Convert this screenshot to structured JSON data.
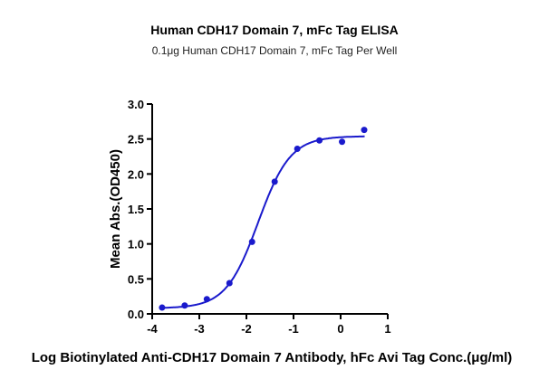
{
  "chart_data": {
    "type": "scatter",
    "title": "Human CDH17 Domain 7, mFc Tag ELISA",
    "subtitle": "0.1μg Human CDH17 Domain 7, mFc Tag Per Well",
    "xlabel": "Log Biotinylated Anti-CDH17 Domain 7 Antibody, hFc Avi  Tag Conc.(μg/ml)",
    "ylabel": "Mean Abs.(OD450)",
    "xlim": [
      -4,
      1
    ],
    "ylim": [
      0,
      3
    ],
    "xticks": [
      "-4",
      "-3",
      "-2",
      "-1",
      "0",
      "1"
    ],
    "yticks": [
      "0.0",
      "0.5",
      "1.0",
      "1.5",
      "2.0",
      "2.5",
      "3.0"
    ],
    "grid": false,
    "color": "#1a1acc",
    "series": [
      {
        "x": [
          -3.79,
          -3.31,
          -2.84,
          -2.36,
          -1.88,
          -1.4,
          -0.92,
          -0.45,
          0.03,
          0.5
        ],
        "y": [
          0.09,
          0.12,
          0.21,
          0.44,
          1.03,
          1.89,
          2.36,
          2.48,
          2.46,
          2.63
        ],
        "fit": {
          "model": "4PL",
          "bottom": 0.08,
          "top": 2.54,
          "logEC50": -1.75,
          "hill": 1.27
        }
      }
    ]
  }
}
